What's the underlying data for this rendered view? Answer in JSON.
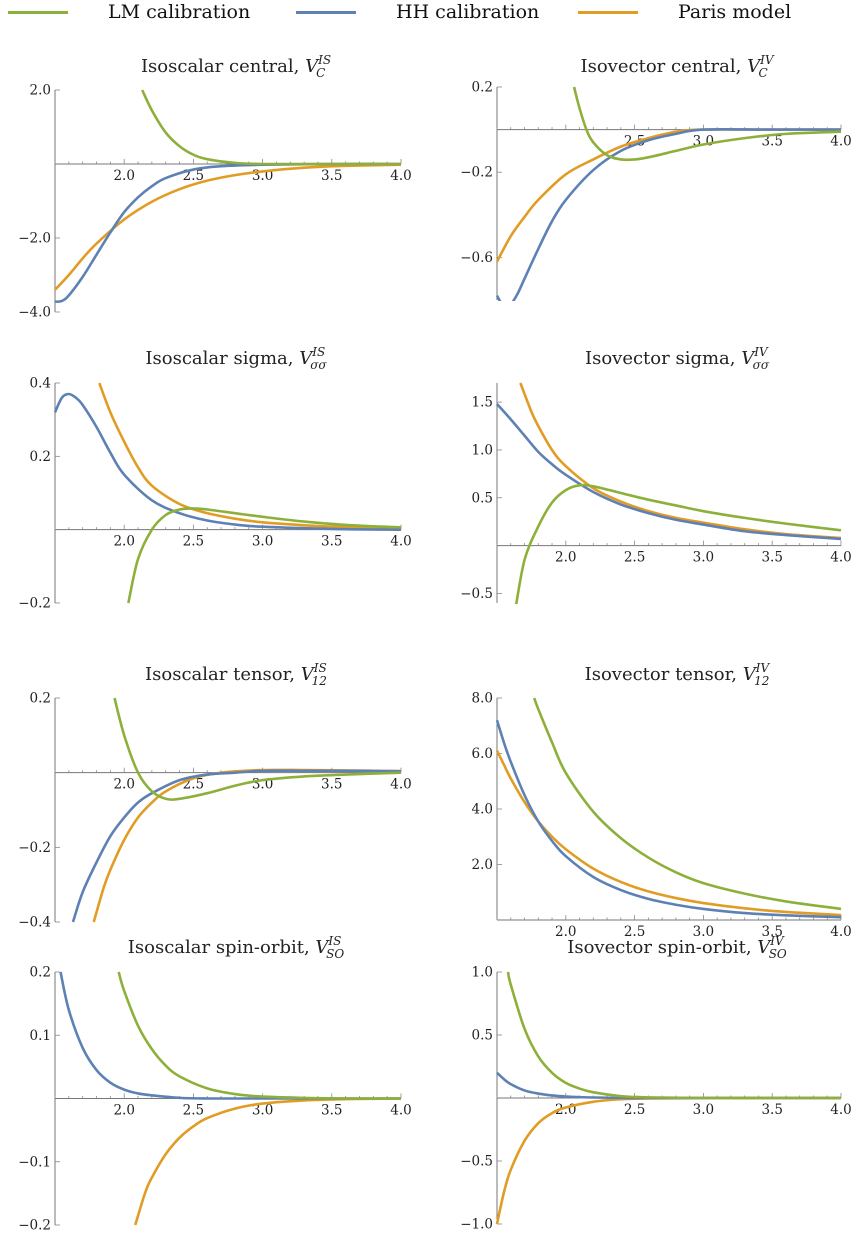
{
  "legend": [
    {
      "name": "LM calibration",
      "color": "#8db03a"
    },
    {
      "name": "HH calibration",
      "color": "#5e81b5"
    },
    {
      "name": "Paris model",
      "color": "#e19c24"
    }
  ],
  "chart_data": [
    {
      "type": "line",
      "title": "Isoscalar central,",
      "symbol": "V",
      "sub": "C",
      "sup": "IS",
      "xlim": [
        1.5,
        4.0
      ],
      "ylim": [
        -4.0,
        2.0
      ],
      "xticks": [
        "2.0",
        "2.5",
        "3.0",
        "3.5",
        "4.0"
      ],
      "yticks": [
        "2.0",
        "-2.0",
        "-4.0"
      ],
      "yticks_values": [
        2.0,
        -2.0,
        -4.0
      ],
      "series": [
        {
          "name": "LM calibration",
          "x": [
            2.13,
            2.2,
            2.3,
            2.4,
            2.5,
            2.6,
            2.8,
            3.0,
            3.5,
            4.0
          ],
          "y": [
            2.0,
            1.45,
            0.85,
            0.48,
            0.25,
            0.13,
            0.03,
            0.0,
            0.0,
            0.0
          ]
        },
        {
          "name": "HH calibration",
          "x": [
            1.5,
            1.55,
            1.6,
            1.7,
            1.8,
            1.9,
            2.0,
            2.1,
            2.2,
            2.3,
            2.5,
            2.7,
            3.0,
            3.5,
            4.0
          ],
          "y": [
            -3.72,
            -3.7,
            -3.55,
            -3.05,
            -2.45,
            -1.85,
            -1.3,
            -0.9,
            -0.6,
            -0.38,
            -0.15,
            -0.06,
            -0.02,
            0.0,
            0.0
          ]
        },
        {
          "name": "Paris model",
          "x": [
            1.5,
            1.6,
            1.7,
            1.8,
            2.0,
            2.2,
            2.4,
            2.6,
            2.8,
            3.0,
            3.3,
            3.6,
            4.0
          ],
          "y": [
            -3.4,
            -3.0,
            -2.55,
            -2.15,
            -1.5,
            -1.02,
            -0.68,
            -0.45,
            -0.3,
            -0.2,
            -0.1,
            -0.05,
            -0.02
          ]
        }
      ]
    },
    {
      "type": "line",
      "title": "Isovector central,",
      "symbol": "V",
      "sub": "C",
      "sup": "IV",
      "xlim": [
        1.5,
        4.0
      ],
      "ylim": [
        -0.8,
        0.2
      ],
      "xticks": [
        "2.5",
        "3.0",
        "3.5",
        "4.0"
      ],
      "yticks": [
        "0.2",
        "-0.2",
        "-0.6"
      ],
      "yticks_values": [
        0.2,
        -0.2,
        -0.6
      ],
      "series": [
        {
          "name": "LM calibration",
          "x": [
            2.06,
            2.1,
            2.15,
            2.2,
            2.3,
            2.4,
            2.5,
            2.6,
            2.8,
            3.0,
            3.3,
            3.6,
            4.0
          ],
          "y": [
            0.2,
            0.1,
            0.0,
            -0.06,
            -0.12,
            -0.14,
            -0.14,
            -0.13,
            -0.1,
            -0.07,
            -0.04,
            -0.02,
            -0.01
          ]
        },
        {
          "name": "HH calibration",
          "x": [
            1.5,
            1.55,
            1.6,
            1.65,
            1.7,
            1.8,
            1.9,
            2.0,
            2.2,
            2.4,
            2.6,
            2.8,
            3.0,
            3.5,
            4.0
          ],
          "y": [
            -0.78,
            -0.83,
            -0.82,
            -0.77,
            -0.7,
            -0.56,
            -0.43,
            -0.33,
            -0.19,
            -0.1,
            -0.05,
            -0.02,
            0.0,
            0.0,
            0.0
          ]
        },
        {
          "name": "Paris model",
          "x": [
            1.5,
            1.6,
            1.7,
            1.8,
            2.0,
            2.2,
            2.4,
            2.6,
            2.8,
            3.0,
            3.5,
            4.0
          ],
          "y": [
            -0.62,
            -0.5,
            -0.41,
            -0.33,
            -0.21,
            -0.14,
            -0.08,
            -0.04,
            -0.01,
            0.0,
            0.0,
            0.0
          ]
        }
      ]
    },
    {
      "type": "line",
      "title": "Isoscalar sigma,",
      "symbol": "V",
      "sub": "σσ",
      "sup": "IS",
      "xlim": [
        1.5,
        4.0
      ],
      "ylim": [
        -0.2,
        0.4
      ],
      "xticks": [
        "2.0",
        "2.5",
        "3.0",
        "3.5",
        "4.0"
      ],
      "yticks": [
        "0.4",
        "0.2",
        "-0.2"
      ],
      "yticks_values": [
        0.4,
        0.2,
        -0.2
      ],
      "series": [
        {
          "name": "LM calibration",
          "x": [
            2.03,
            2.1,
            2.2,
            2.3,
            2.4,
            2.5,
            2.6,
            2.8,
            3.0,
            3.3,
            3.6,
            4.0
          ],
          "y": [
            -0.2,
            -0.08,
            0.0,
            0.04,
            0.055,
            0.058,
            0.055,
            0.045,
            0.035,
            0.022,
            0.013,
            0.006
          ]
        },
        {
          "name": "HH calibration",
          "x": [
            1.5,
            1.55,
            1.6,
            1.65,
            1.7,
            1.8,
            1.9,
            2.0,
            2.2,
            2.4,
            2.6,
            2.8,
            3.0,
            3.5,
            4.0
          ],
          "y": [
            0.32,
            0.36,
            0.37,
            0.36,
            0.34,
            0.28,
            0.21,
            0.15,
            0.08,
            0.045,
            0.025,
            0.014,
            0.008,
            0.002,
            0.0
          ]
        },
        {
          "name": "Paris model",
          "x": [
            1.82,
            1.9,
            2.0,
            2.1,
            2.2,
            2.4,
            2.6,
            2.8,
            3.0,
            3.3,
            3.6,
            4.0
          ],
          "y": [
            0.4,
            0.32,
            0.24,
            0.17,
            0.12,
            0.07,
            0.045,
            0.03,
            0.02,
            0.012,
            0.007,
            0.003
          ]
        }
      ]
    },
    {
      "type": "line",
      "title": "Isovector sigma,",
      "symbol": "V",
      "sub": "σσ",
      "sup": "IV",
      "xlim": [
        1.5,
        4.0
      ],
      "ylim": [
        -0.6,
        1.7
      ],
      "xticks": [
        "2.0",
        "2.5",
        "3.0",
        "3.5",
        "4.0"
      ],
      "yticks": [
        "1.5",
        "1.0",
        "0.5",
        "-0.5"
      ],
      "yticks_values": [
        1.5,
        1.0,
        0.5,
        -0.5
      ],
      "series": [
        {
          "name": "LM calibration",
          "x": [
            1.63,
            1.7,
            1.8,
            1.9,
            2.0,
            2.1,
            2.2,
            2.4,
            2.6,
            2.8,
            3.0,
            3.3,
            3.6,
            4.0
          ],
          "y": [
            -0.7,
            -0.15,
            0.2,
            0.45,
            0.58,
            0.63,
            0.62,
            0.55,
            0.48,
            0.42,
            0.36,
            0.29,
            0.23,
            0.16
          ]
        },
        {
          "name": "HH calibration",
          "x": [
            1.5,
            1.6,
            1.7,
            1.8,
            1.9,
            2.0,
            2.2,
            2.4,
            2.6,
            2.8,
            3.0,
            3.3,
            3.6,
            4.0
          ],
          "y": [
            1.48,
            1.32,
            1.15,
            0.98,
            0.85,
            0.74,
            0.56,
            0.43,
            0.34,
            0.27,
            0.22,
            0.15,
            0.11,
            0.07
          ]
        },
        {
          "name": "Paris model",
          "x": [
            1.67,
            1.75,
            1.8,
            1.9,
            2.0,
            2.2,
            2.4,
            2.6,
            2.8,
            3.0,
            3.3,
            3.6,
            4.0
          ],
          "y": [
            1.7,
            1.4,
            1.25,
            1.0,
            0.83,
            0.6,
            0.46,
            0.36,
            0.29,
            0.24,
            0.17,
            0.12,
            0.08
          ]
        }
      ]
    },
    {
      "type": "line",
      "title": "Isoscalar tensor,",
      "symbol": "V",
      "sub": "12",
      "sup": "IS",
      "xlim": [
        1.5,
        4.0
      ],
      "ylim": [
        -0.4,
        0.2
      ],
      "xticks": [
        "2.0",
        "2.5",
        "3.0",
        "3.5",
        "4.0"
      ],
      "yticks": [
        "0.2",
        "-0.2",
        "-0.4"
      ],
      "yticks_values": [
        0.2,
        -0.2,
        -0.4
      ],
      "series": [
        {
          "name": "LM calibration",
          "x": [
            1.93,
            2.0,
            2.1,
            2.2,
            2.3,
            2.4,
            2.6,
            2.8,
            3.0,
            3.3,
            3.6,
            4.0
          ],
          "y": [
            0.2,
            0.1,
            0.0,
            -0.05,
            -0.07,
            -0.07,
            -0.055,
            -0.035,
            -0.02,
            -0.01,
            -0.005,
            0.0
          ]
        },
        {
          "name": "HH calibration",
          "x": [
            1.63,
            1.7,
            1.8,
            1.9,
            2.0,
            2.1,
            2.2,
            2.4,
            2.6,
            2.8,
            3.0,
            3.3,
            3.6,
            4.0
          ],
          "y": [
            -0.4,
            -0.32,
            -0.24,
            -0.17,
            -0.12,
            -0.08,
            -0.055,
            -0.02,
            -0.005,
            0.0,
            0.005,
            0.005,
            0.005,
            0.004
          ]
        },
        {
          "name": "Paris model",
          "x": [
            1.78,
            1.85,
            1.9,
            2.0,
            2.1,
            2.2,
            2.3,
            2.5,
            2.7,
            3.0,
            3.3,
            3.6,
            4.0
          ],
          "y": [
            -0.4,
            -0.31,
            -0.26,
            -0.18,
            -0.12,
            -0.08,
            -0.05,
            -0.015,
            0.0,
            0.007,
            0.007,
            0.006,
            0.004
          ]
        }
      ]
    },
    {
      "type": "line",
      "title": "Isovector tensor,",
      "symbol": "V",
      "sub": "12",
      "sup": "IV",
      "xlim": [
        1.5,
        4.0
      ],
      "ylim": [
        0.0,
        8.0
      ],
      "xticks": [
        "2.0",
        "2.5",
        "3.0",
        "3.5",
        "4.0"
      ],
      "yticks": [
        "8.0",
        "6.0",
        "4.0",
        "2.0"
      ],
      "yticks_values": [
        8.0,
        6.0,
        4.0,
        2.0
      ],
      "series": [
        {
          "name": "LM calibration",
          "x": [
            1.77,
            1.8,
            1.9,
            2.0,
            2.2,
            2.4,
            2.6,
            2.8,
            3.0,
            3.3,
            3.6,
            4.0
          ],
          "y": [
            8.0,
            7.6,
            6.4,
            5.3,
            3.9,
            2.95,
            2.25,
            1.72,
            1.33,
            0.95,
            0.67,
            0.4
          ]
        },
        {
          "name": "HH calibration",
          "x": [
            1.5,
            1.55,
            1.6,
            1.7,
            1.8,
            1.9,
            2.0,
            2.2,
            2.4,
            2.6,
            2.8,
            3.0,
            3.3,
            3.6,
            4.0
          ],
          "y": [
            7.2,
            6.4,
            5.7,
            4.5,
            3.55,
            2.85,
            2.3,
            1.55,
            1.08,
            0.76,
            0.55,
            0.4,
            0.25,
            0.17,
            0.1
          ]
        },
        {
          "name": "Paris model",
          "x": [
            1.5,
            1.55,
            1.6,
            1.7,
            1.8,
            1.9,
            2.0,
            2.2,
            2.4,
            2.6,
            2.8,
            3.0,
            3.3,
            3.6,
            4.0
          ],
          "y": [
            6.1,
            5.6,
            5.1,
            4.25,
            3.55,
            3.0,
            2.55,
            1.85,
            1.37,
            1.03,
            0.79,
            0.61,
            0.42,
            0.29,
            0.18
          ]
        }
      ]
    },
    {
      "type": "line",
      "title": "Isoscalar spin-orbit,",
      "symbol": "V",
      "sub": "SO",
      "sup": "IS",
      "xlim": [
        1.5,
        4.0
      ],
      "ylim": [
        -0.2,
        0.2
      ],
      "xticks": [
        "2.0",
        "2.5",
        "3.0",
        "3.5",
        "4.0"
      ],
      "yticks": [
        "0.2",
        "0.1",
        "-0.1",
        "-0.2"
      ],
      "yticks_values": [
        0.2,
        0.1,
        -0.1,
        -0.2
      ],
      "series": [
        {
          "name": "LM calibration",
          "x": [
            1.96,
            2.0,
            2.1,
            2.2,
            2.3,
            2.4,
            2.6,
            2.8,
            3.0,
            3.3,
            3.6,
            4.0
          ],
          "y": [
            0.2,
            0.17,
            0.115,
            0.078,
            0.052,
            0.035,
            0.016,
            0.007,
            0.003,
            0.001,
            0.0,
            0.0
          ]
        },
        {
          "name": "HH calibration",
          "x": [
            1.54,
            1.6,
            1.7,
            1.8,
            1.9,
            2.0,
            2.1,
            2.2,
            2.4,
            2.6,
            3.0,
            3.5,
            4.0
          ],
          "y": [
            0.2,
            0.14,
            0.08,
            0.045,
            0.025,
            0.014,
            0.008,
            0.005,
            0.001,
            0.0,
            0.0,
            0.0,
            0.0
          ]
        },
        {
          "name": "Paris model",
          "x": [
            2.08,
            2.15,
            2.2,
            2.3,
            2.4,
            2.5,
            2.6,
            2.8,
            3.0,
            3.3,
            3.6,
            4.0
          ],
          "y": [
            -0.2,
            -0.15,
            -0.125,
            -0.088,
            -0.062,
            -0.044,
            -0.031,
            -0.016,
            -0.008,
            -0.003,
            -0.001,
            0.0
          ]
        }
      ]
    },
    {
      "type": "line",
      "title": "Isovector spin-orbit,",
      "symbol": "V",
      "sub": "SO",
      "sup": "IV",
      "xlim": [
        1.5,
        4.0
      ],
      "ylim": [
        -1.0,
        1.0
      ],
      "xticks": [
        "2.0",
        "2.5",
        "3.0",
        "3.5",
        "4.0"
      ],
      "yticks": [
        "1.0",
        "0.5",
        "-0.5",
        "-1.0"
      ],
      "yticks_values": [
        1.0,
        0.5,
        -0.5,
        -1.0
      ],
      "series": [
        {
          "name": "LM calibration",
          "x": [
            1.58,
            1.6,
            1.7,
            1.8,
            1.9,
            2.0,
            2.1,
            2.2,
            2.4,
            2.6,
            3.0,
            3.5,
            4.0
          ],
          "y": [
            1.0,
            0.9,
            0.55,
            0.33,
            0.2,
            0.12,
            0.075,
            0.045,
            0.015,
            0.005,
            0.0,
            0.0,
            0.0
          ]
        },
        {
          "name": "HH calibration",
          "x": [
            1.5,
            1.55,
            1.6,
            1.7,
            1.8,
            1.9,
            2.0,
            2.2,
            2.5,
            3.0,
            3.5,
            4.0
          ],
          "y": [
            0.2,
            0.15,
            0.11,
            0.06,
            0.035,
            0.02,
            0.012,
            0.004,
            0.0,
            0.0,
            0.0,
            0.0
          ]
        },
        {
          "name": "Paris model",
          "x": [
            1.5,
            1.55,
            1.6,
            1.7,
            1.8,
            1.9,
            2.0,
            2.2,
            2.4,
            2.6,
            3.0,
            3.5,
            4.0
          ],
          "y": [
            -1.0,
            -0.75,
            -0.57,
            -0.34,
            -0.2,
            -0.12,
            -0.075,
            -0.03,
            -0.01,
            -0.004,
            0.0,
            0.0,
            0.0
          ]
        }
      ]
    }
  ]
}
